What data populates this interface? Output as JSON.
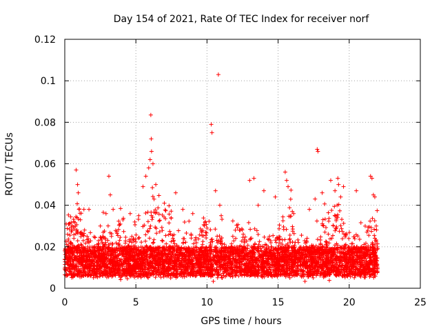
{
  "chart_data": {
    "type": "scatter",
    "title": "Day 154 of 2021, Rate Of TEC Index for receiver norf",
    "xlabel": "GPS time / hours",
    "ylabel": "ROTI / TECUs",
    "xlim": [
      0,
      25
    ],
    "ylim": [
      0,
      0.12
    ],
    "xticks": [
      "0",
      "5",
      "10",
      "15",
      "20",
      "25"
    ],
    "yticks": [
      "0",
      "0.02",
      "0.04",
      "0.06",
      "0.08",
      "0.1",
      "0.12"
    ],
    "grid": true,
    "marker": "plus",
    "marker_color": "#ff0000",
    "x_data_range": [
      0,
      22
    ],
    "series": [
      {
        "values": [
          [
            0.1,
            0.031
          ],
          [
            0.2,
            0.026
          ],
          [
            0.4,
            0.022
          ],
          [
            0.8,
            0.057
          ],
          [
            0.9,
            0.05
          ],
          [
            0.95,
            0.046
          ],
          [
            1.0,
            0.038
          ],
          [
            1.1,
            0.033
          ],
          [
            1.7,
            0.038
          ],
          [
            2.5,
            0.03
          ],
          [
            2.9,
            0.036
          ],
          [
            3.1,
            0.054
          ],
          [
            3.2,
            0.045
          ],
          [
            3.4,
            0.038
          ],
          [
            4.6,
            0.036
          ],
          [
            5.2,
            0.035
          ],
          [
            5.5,
            0.049
          ],
          [
            5.7,
            0.054
          ],
          [
            5.9,
            0.058
          ],
          [
            6.0,
            0.062
          ],
          [
            6.05,
            0.0835
          ],
          [
            6.08,
            0.072
          ],
          [
            6.1,
            0.066
          ],
          [
            6.2,
            0.06
          ],
          [
            6.4,
            0.05
          ],
          [
            7.0,
            0.041
          ],
          [
            7.8,
            0.046
          ],
          [
            8.3,
            0.038
          ],
          [
            9.0,
            0.036
          ],
          [
            10.3,
            0.079
          ],
          [
            10.35,
            0.075
          ],
          [
            10.6,
            0.047
          ],
          [
            10.8,
            0.103
          ],
          [
            10.9,
            0.04
          ],
          [
            11.0,
            0.035
          ],
          [
            13.0,
            0.052
          ],
          [
            13.3,
            0.053
          ],
          [
            13.6,
            0.04
          ],
          [
            14.0,
            0.047
          ],
          [
            14.8,
            0.044
          ],
          [
            15.5,
            0.056
          ],
          [
            15.6,
            0.052
          ],
          [
            15.7,
            0.049
          ],
          [
            16.0,
            0.037
          ],
          [
            17.2,
            0.038
          ],
          [
            17.6,
            0.043
          ],
          [
            17.75,
            0.067
          ],
          [
            17.8,
            0.066
          ],
          [
            18.1,
            0.046
          ],
          [
            18.7,
            0.052
          ],
          [
            19.0,
            0.047
          ],
          [
            19.2,
            0.053
          ],
          [
            19.25,
            0.05
          ],
          [
            19.4,
            0.044
          ],
          [
            19.6,
            0.049
          ],
          [
            20.5,
            0.047
          ],
          [
            21.5,
            0.054
          ],
          [
            21.6,
            0.053
          ],
          [
            21.7,
            0.045
          ],
          [
            21.8,
            0.044
          ],
          [
            21.9,
            0.03
          ]
        ]
      }
    ]
  }
}
